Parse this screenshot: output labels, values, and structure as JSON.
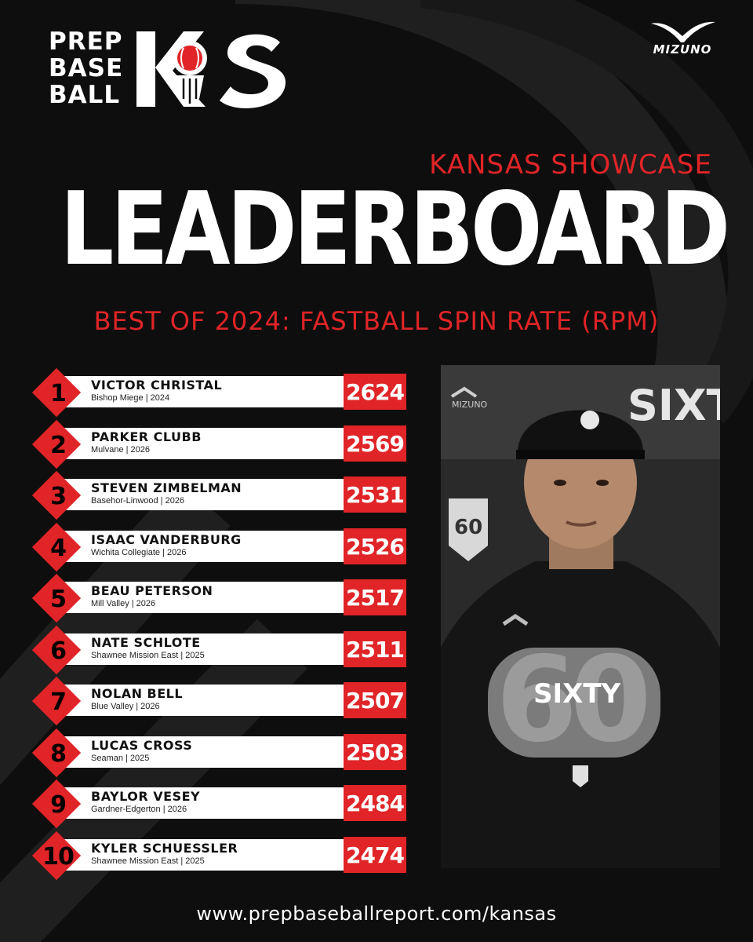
{
  "brand": {
    "logo_lines": [
      "PREP",
      "BASE",
      "BALL"
    ],
    "logo_mark": "KS",
    "sponsor": "MIZUNO"
  },
  "header": {
    "event": "KANSAS SHOWCASE",
    "title": "LEADERBOARD",
    "subtitle": "BEST OF 2024: FASTBALL SPIN RATE (RPM)"
  },
  "leaderboard": [
    {
      "rank": "1",
      "name": "VICTOR CHRISTAL",
      "info": "Bishop Miege | 2024",
      "value": "2624"
    },
    {
      "rank": "2",
      "name": "PARKER CLUBB",
      "info": "Mulvane | 2026",
      "value": "2569"
    },
    {
      "rank": "3",
      "name": "STEVEN ZIMBELMAN",
      "info": "Basehor-Linwood | 2026",
      "value": "2531"
    },
    {
      "rank": "4",
      "name": "ISAAC VANDERBURG",
      "info": "Wichita Collegiate | 2026",
      "value": "2526"
    },
    {
      "rank": "5",
      "name": "BEAU PETERSON",
      "info": "Mill Valley | 2026",
      "value": "2517"
    },
    {
      "rank": "6",
      "name": "NATE SCHLOTE",
      "info": "Shawnee Mission East | 2025",
      "value": "2511"
    },
    {
      "rank": "7",
      "name": "NOLAN BELL",
      "info": "Blue Valley | 2026",
      "value": "2507"
    },
    {
      "rank": "8",
      "name": "LUCAS CROSS",
      "info": "Seaman | 2025",
      "value": "2503"
    },
    {
      "rank": "9",
      "name": "BAYLOR VESEY",
      "info": "Gardner-Edgerton | 2026",
      "value": "2484"
    },
    {
      "rank": "10",
      "name": "KYLER SCHUESSLER",
      "info": "Shawnee Mission East | 2025",
      "value": "2474"
    }
  ],
  "photo": {
    "backdrop_text": "SIXTY",
    "shirt_text": "SIXTY",
    "shirt_number": "60"
  },
  "footer": {
    "url": "www.prepbaseballreport.com/kansas"
  },
  "colors": {
    "accent": "#e02427",
    "background": "#0e0e0e",
    "bar": "#ffffff"
  }
}
